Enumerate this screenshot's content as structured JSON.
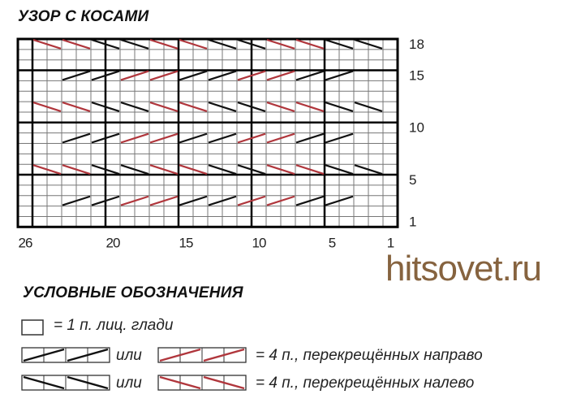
{
  "title": "УЗОР С КОСАМИ",
  "chart": {
    "columns": 26,
    "rows": 18,
    "row_labels": [
      18,
      15,
      10,
      5,
      1
    ],
    "column_labels": [
      26,
      20,
      15,
      10,
      5,
      1
    ],
    "section_dividers_after_rows": [
      5,
      10,
      15
    ],
    "section_dividers_after_columns": [
      26,
      21,
      16,
      11,
      6
    ],
    "cable_rows": [
      {
        "row": 18,
        "direction": "left",
        "from_col": 25,
        "colors": [
          "red",
          "red",
          "black",
          "black",
          "red",
          "red",
          "black",
          "black",
          "red",
          "red",
          "black",
          "black"
        ]
      },
      {
        "row": 15,
        "direction": "right",
        "from_col": 23,
        "colors": [
          "black",
          "black",
          "red",
          "red",
          "black",
          "black",
          "red",
          "red",
          "black",
          "black"
        ]
      },
      {
        "row": 12,
        "direction": "left",
        "from_col": 25,
        "colors": [
          "red",
          "red",
          "black",
          "black",
          "red",
          "red",
          "black",
          "black",
          "red",
          "red",
          "black",
          "black"
        ]
      },
      {
        "row": 9,
        "direction": "right",
        "from_col": 23,
        "colors": [
          "black",
          "black",
          "red",
          "red",
          "black",
          "black",
          "red",
          "red",
          "black",
          "black"
        ]
      },
      {
        "row": 6,
        "direction": "left",
        "from_col": 25,
        "colors": [
          "red",
          "red",
          "black",
          "black",
          "red",
          "red",
          "black",
          "black",
          "red",
          "red",
          "black",
          "black"
        ]
      },
      {
        "row": 3,
        "direction": "right",
        "from_col": 23,
        "colors": [
          "black",
          "black",
          "red",
          "red",
          "black",
          "black",
          "red",
          "red",
          "black",
          "black"
        ]
      }
    ],
    "colors": {
      "red": "#b0363c",
      "black": "#111111",
      "grid": "#777777"
    }
  },
  "legend": {
    "title": "УСЛОВНЫЕ ОБОЗНАЧЕНИЯ",
    "knit": "= 1 п. лиц. глади",
    "or1": "или",
    "or2": "или",
    "right_cross": "= 4 п., перекрещённых направо",
    "left_cross": "= 4 п., перекрещённых налево"
  },
  "watermark": "hitsovet.ru"
}
